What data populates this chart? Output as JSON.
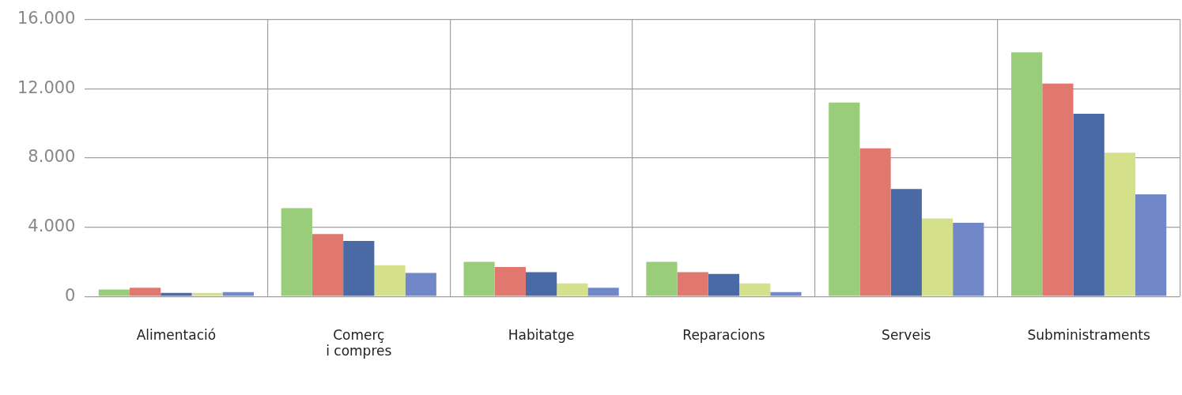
{
  "chart_data": {
    "type": "bar",
    "categories": [
      "Alimentació",
      "Comerç\ni compres",
      "Habitatge",
      "Reparacions",
      "Serveis",
      "Subministraments"
    ],
    "series": [
      {
        "color": "#9acd7a",
        "values": [
          400,
          5100,
          2000,
          2000,
          11200,
          14100
        ]
      },
      {
        "color": "#e07870",
        "values": [
          500,
          3600,
          1700,
          1400,
          8550,
          12300
        ]
      },
      {
        "color": "#4a6aa5",
        "values": [
          200,
          3200,
          1400,
          1300,
          6200,
          10550
        ]
      },
      {
        "color": "#d4e18a",
        "values": [
          200,
          1800,
          750,
          750,
          4500,
          8300
        ]
      },
      {
        "color": "#7088c8",
        "values": [
          250,
          1350,
          500,
          250,
          4250,
          5900
        ]
      }
    ],
    "ylim": [
      0,
      16000
    ],
    "yticks": [
      {
        "value": 0,
        "label": "0"
      },
      {
        "value": 4000,
        "label": "4.000"
      },
      {
        "value": 8000,
        "label": "8.000"
      },
      {
        "value": 12000,
        "label": "12.000"
      },
      {
        "value": 16000,
        "label": "16.000"
      }
    ],
    "grid": true,
    "legend": false
  }
}
